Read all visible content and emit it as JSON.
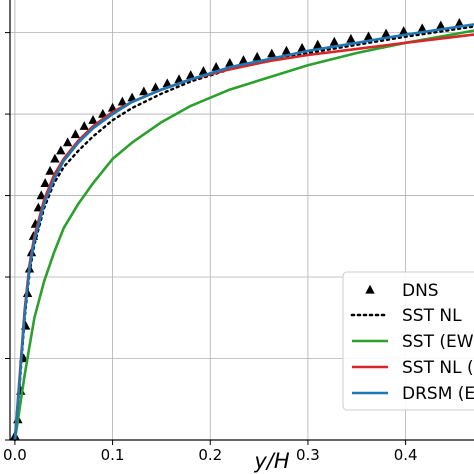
{
  "chart_data": {
    "type": "line",
    "xlabel": "y/H",
    "ylabel": "",
    "xlim": [
      -0.005,
      0.47
    ],
    "ylim": [
      0.0,
      1.08
    ],
    "grid": true,
    "legend_placement": "bottom-right",
    "xticks": [
      0.0,
      0.1,
      0.2,
      0.3,
      0.4
    ],
    "xtick_labels": [
      "0.0",
      "0.1",
      "0.2",
      "0.3",
      "0.4"
    ],
    "yticks": [
      0.0,
      0.2,
      0.4,
      0.6,
      0.8,
      1.0
    ],
    "series": [
      {
        "name": "DNS",
        "style": "marker-triangle",
        "color": "#000000",
        "x": [
          0.0,
          0.003,
          0.006,
          0.009,
          0.011,
          0.013,
          0.015,
          0.017,
          0.019,
          0.021,
          0.024,
          0.027,
          0.031,
          0.036,
          0.041,
          0.047,
          0.054,
          0.062,
          0.071,
          0.08,
          0.09,
          0.1,
          0.11,
          0.12,
          0.132,
          0.144,
          0.156,
          0.168,
          0.18,
          0.193,
          0.206,
          0.22,
          0.234,
          0.248,
          0.263,
          0.278,
          0.294,
          0.31,
          0.327,
          0.344,
          0.362,
          0.38,
          0.398,
          0.417,
          0.436,
          0.455
        ],
        "y": [
          0.01,
          0.05,
          0.12,
          0.2,
          0.28,
          0.36,
          0.42,
          0.46,
          0.5,
          0.53,
          0.57,
          0.6,
          0.63,
          0.66,
          0.69,
          0.71,
          0.73,
          0.75,
          0.77,
          0.785,
          0.8,
          0.815,
          0.83,
          0.84,
          0.855,
          0.865,
          0.875,
          0.885,
          0.895,
          0.905,
          0.915,
          0.925,
          0.932,
          0.94,
          0.948,
          0.955,
          0.962,
          0.97,
          0.977,
          0.984,
          0.99,
          0.997,
          1.003,
          1.01,
          1.017,
          1.023
        ]
      },
      {
        "name": "SST NL",
        "style": "dotted",
        "color": "#000000",
        "x": [
          0.0,
          0.005,
          0.01,
          0.015,
          0.02,
          0.03,
          0.04,
          0.05,
          0.065,
          0.08,
          0.1,
          0.12,
          0.15,
          0.18,
          0.22,
          0.26,
          0.3,
          0.35,
          0.4,
          0.47
        ],
        "y": [
          0.0,
          0.14,
          0.3,
          0.41,
          0.48,
          0.57,
          0.63,
          0.67,
          0.71,
          0.745,
          0.785,
          0.815,
          0.85,
          0.88,
          0.91,
          0.93,
          0.95,
          0.97,
          0.99,
          1.015
        ]
      },
      {
        "name": "SST (EWT)",
        "style": "solid",
        "color": "#2ca02c",
        "x": [
          0.0,
          0.005,
          0.01,
          0.015,
          0.02,
          0.03,
          0.04,
          0.05,
          0.065,
          0.08,
          0.1,
          0.12,
          0.15,
          0.18,
          0.22,
          0.26,
          0.3,
          0.35,
          0.4,
          0.47
        ],
        "y": [
          0.0,
          0.08,
          0.16,
          0.23,
          0.3,
          0.39,
          0.46,
          0.52,
          0.58,
          0.63,
          0.69,
          0.73,
          0.78,
          0.82,
          0.86,
          0.89,
          0.92,
          0.95,
          0.975,
          1.005
        ]
      },
      {
        "name": "SST NL (EWT)",
        "style": "solid",
        "color": "#d62728",
        "x": [
          0.0,
          0.005,
          0.01,
          0.015,
          0.02,
          0.03,
          0.04,
          0.05,
          0.065,
          0.08,
          0.1,
          0.12,
          0.15,
          0.18,
          0.22,
          0.26,
          0.3,
          0.35,
          0.4,
          0.47
        ],
        "y": [
          0.0,
          0.16,
          0.32,
          0.43,
          0.5,
          0.59,
          0.65,
          0.69,
          0.735,
          0.77,
          0.805,
          0.83,
          0.86,
          0.885,
          0.91,
          0.93,
          0.945,
          0.96,
          0.975,
          0.995
        ]
      },
      {
        "name": "DRSM (EWT)",
        "style": "solid",
        "color": "#1f77b4",
        "x": [
          0.0,
          0.005,
          0.01,
          0.015,
          0.02,
          0.03,
          0.04,
          0.05,
          0.065,
          0.08,
          0.1,
          0.12,
          0.15,
          0.18,
          0.22,
          0.26,
          0.3,
          0.35,
          0.4,
          0.47
        ],
        "y": [
          0.0,
          0.15,
          0.31,
          0.42,
          0.49,
          0.58,
          0.64,
          0.685,
          0.73,
          0.765,
          0.8,
          0.83,
          0.86,
          0.885,
          0.915,
          0.935,
          0.955,
          0.975,
          0.995,
          1.02
        ]
      }
    ]
  },
  "legend": {
    "entries": [
      "DNS",
      "SST NL",
      "SST (EW",
      "SST NL (",
      "DRSM (E"
    ]
  }
}
